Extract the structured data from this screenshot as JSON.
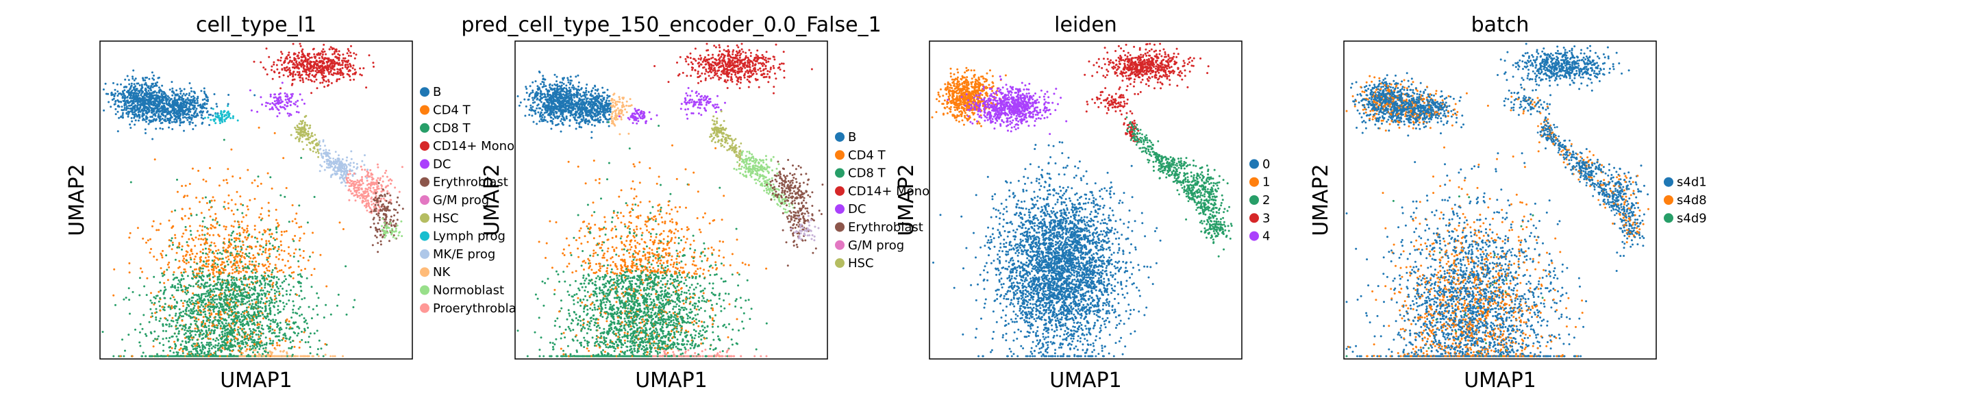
{
  "chart_data": [
    {
      "type": "scatter",
      "title": "cell_type_l1",
      "xlabel": "UMAP1",
      "ylabel": "UMAP2",
      "grid": false,
      "legend_position": "right",
      "legend": [
        {
          "label": "B",
          "color": "#1f77b4"
        },
        {
          "label": "CD4 T",
          "color": "#ff7f0e"
        },
        {
          "label": "CD8 T",
          "color": "#279e68"
        },
        {
          "label": "CD14+ Mono",
          "color": "#d62728"
        },
        {
          "label": "DC",
          "color": "#aa40fc"
        },
        {
          "label": "Erythroblast",
          "color": "#8c564b"
        },
        {
          "label": "G/M prog",
          "color": "#e377c2"
        },
        {
          "label": "HSC",
          "color": "#b5bd61"
        },
        {
          "label": "Lymph prog",
          "color": "#17becf"
        },
        {
          "label": "MK/E prog",
          "color": "#aec7e8"
        },
        {
          "label": "NK",
          "color": "#ffbb78"
        },
        {
          "label": "Normoblast",
          "color": "#98df8a"
        },
        {
          "label": "Proerythroblast",
          "color": "#ff9896"
        }
      ]
    },
    {
      "type": "scatter",
      "title": "pred_cell_type_150_encoder_0.0_False_1",
      "xlabel": "UMAP1",
      "ylabel": "UMAP2",
      "grid": false,
      "legend_position": "right",
      "legend": [
        {
          "label": "B",
          "color": "#1f77b4"
        },
        {
          "label": "CD4 T",
          "color": "#ff7f0e"
        },
        {
          "label": "CD8 T",
          "color": "#279e68"
        },
        {
          "label": "CD14+ Mono",
          "color": "#d62728"
        },
        {
          "label": "DC",
          "color": "#aa40fc"
        },
        {
          "label": "Erythroblast",
          "color": "#8c564b"
        },
        {
          "label": "G/M prog",
          "color": "#e377c2"
        },
        {
          "label": "HSC",
          "color": "#b5bd61"
        }
      ]
    },
    {
      "type": "scatter",
      "title": "leiden",
      "xlabel": "UMAP1",
      "ylabel": "UMAP2",
      "grid": false,
      "legend_position": "right",
      "legend": [
        {
          "label": "0",
          "color": "#1f77b4"
        },
        {
          "label": "1",
          "color": "#ff7f0e"
        },
        {
          "label": "2",
          "color": "#279e68"
        },
        {
          "label": "3",
          "color": "#d62728"
        },
        {
          "label": "4",
          "color": "#aa40fc"
        }
      ]
    },
    {
      "type": "scatter",
      "title": "batch",
      "xlabel": "UMAP1",
      "ylabel": "UMAP2",
      "grid": false,
      "legend_position": "right",
      "legend": [
        {
          "label": "s4d1",
          "color": "#1f77b4"
        },
        {
          "label": "s4d8",
          "color": "#ff7f0e"
        },
        {
          "label": "s4d9",
          "color": "#279e68"
        }
      ]
    }
  ]
}
